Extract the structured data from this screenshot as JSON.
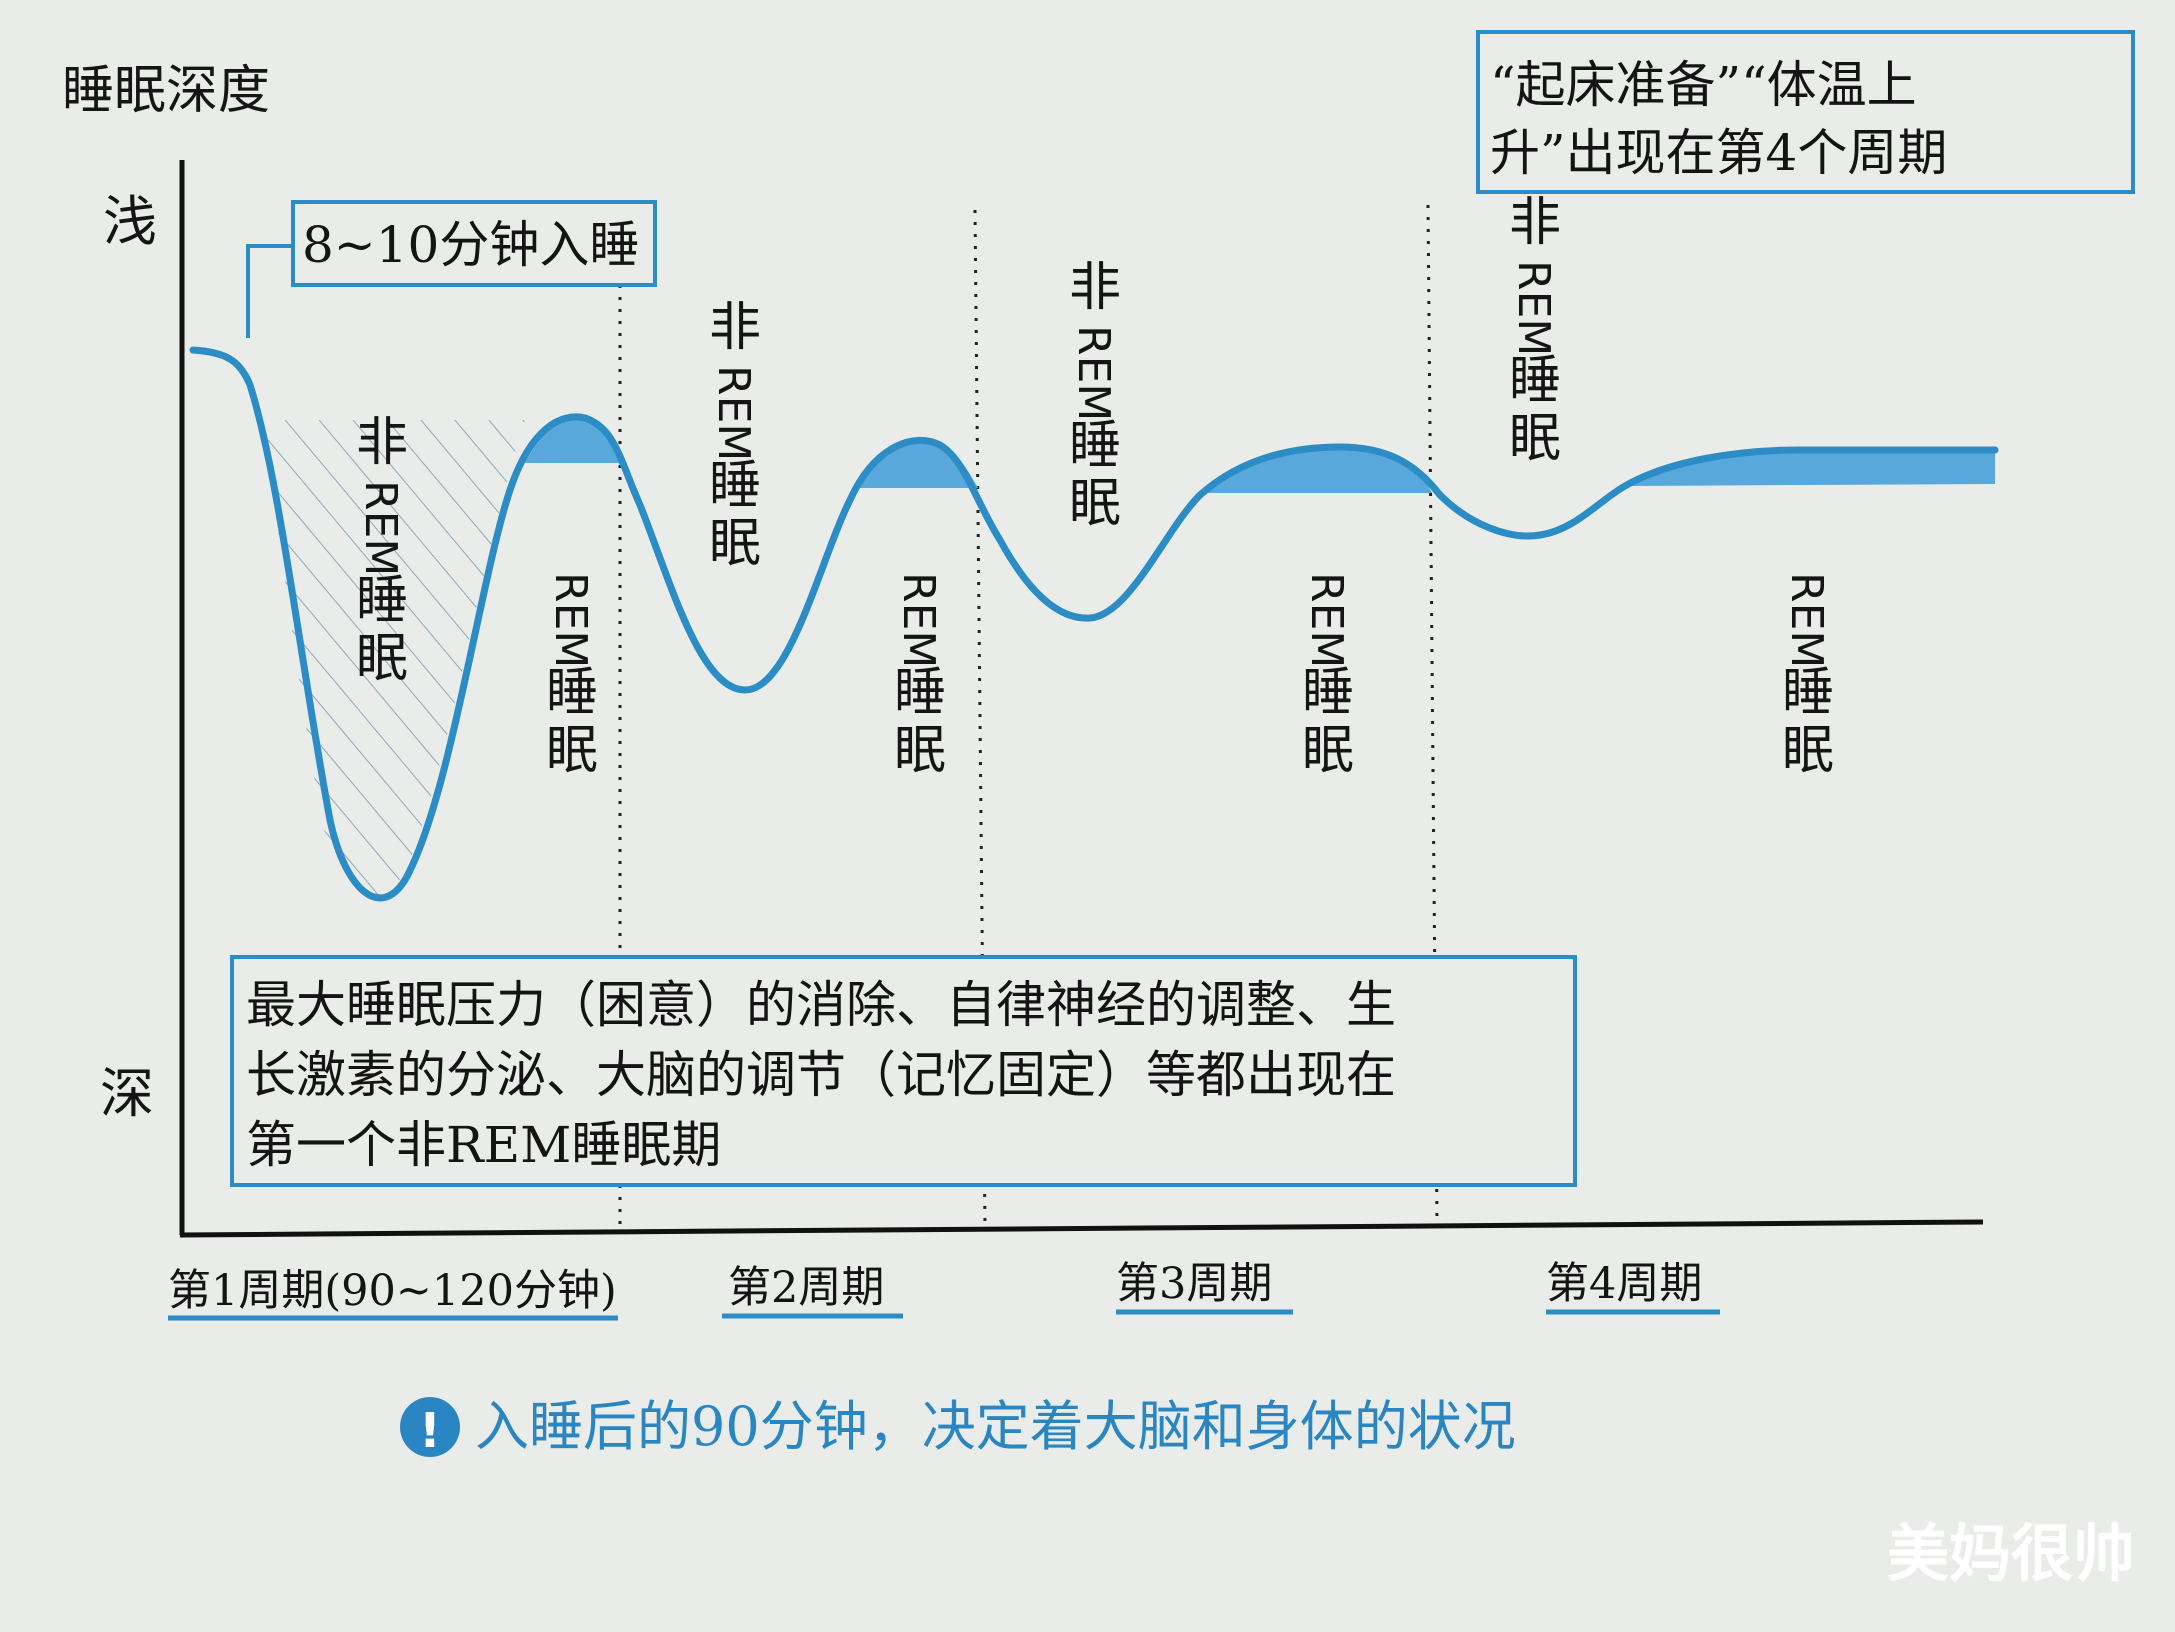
{
  "chart_data": {
    "type": "line",
    "ylabel": "睡眠深度",
    "y_top_label": "浅",
    "y_bottom_label": "深",
    "x_ticks": [
      "第1周期(90~120分钟)",
      "第2周期",
      "第3周期",
      "第4周期"
    ],
    "stage_labels": [
      {
        "text": "非REM睡眠",
        "kind": "non-rem",
        "cycle": 1
      },
      {
        "text": "REM睡眠",
        "kind": "rem",
        "cycle": 1
      },
      {
        "text": "非REM睡眠",
        "kind": "non-rem",
        "cycle": 2
      },
      {
        "text": "REM睡眠",
        "kind": "rem",
        "cycle": 2
      },
      {
        "text": "非REM睡眠",
        "kind": "non-rem",
        "cycle": 3
      },
      {
        "text": "REM睡眠",
        "kind": "rem",
        "cycle": 3
      },
      {
        "text": "非REM睡眠",
        "kind": "non-rem",
        "cycle": 4
      },
      {
        "text": "REM睡眠",
        "kind": "rem",
        "cycle": 4
      }
    ],
    "colors": {
      "curve": "#2b8cc6",
      "rem_fill": "#58a8dc",
      "box": "#2b8cc6",
      "caption": "#2a86c2"
    }
  },
  "annotations": {
    "sleep_onset": "8~10分钟入睡",
    "top_right_lines": [
      "“起床准备”“体温上",
      "升”出现在第4个周期"
    ],
    "bottom_lines": [
      "最大睡眠压力（困意）的消除、自律神经的调整、生",
      "长激素的分泌、大脑的调节（记忆固定）等都出现在",
      "第一个非REM睡眠期"
    ]
  },
  "caption": {
    "icon": "exclamation-icon",
    "text": "入睡后的90分钟，决定着大脑和身体的状况"
  },
  "watermark": "美妈很帅"
}
